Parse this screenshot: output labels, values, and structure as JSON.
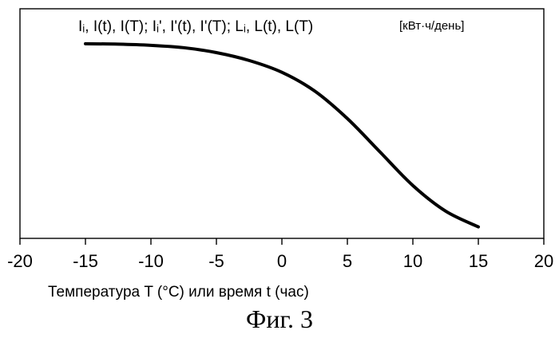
{
  "chart_data": {
    "type": "line",
    "title": "",
    "ylabel": "Iᵢ, I(t), I(T); Iᵢ', I'(t), I'(T); Lᵢ, L(t), L(T)",
    "ylabel_units": "[кВт·ч/день]",
    "xlabel": "Температура T (°C) или время t (час)",
    "xlim": [
      -20,
      20
    ],
    "xticks": [
      -20,
      -15,
      -10,
      -5,
      0,
      5,
      10,
      15,
      20
    ],
    "xtick_labels": [
      "-20",
      "-15",
      "-10",
      "-5",
      "0",
      "5",
      "10",
      "15",
      "20"
    ],
    "ylim": [
      0,
      1
    ],
    "y_ticks_shown": false,
    "grid": false,
    "series": [
      {
        "x": [
          -15,
          -12.5,
          -10,
          -7.5,
          -5,
          -2.5,
          0,
          2.5,
          5,
          7.5,
          10,
          12.5,
          15
        ],
        "y": [
          0.96,
          0.958,
          0.952,
          0.94,
          0.915,
          0.875,
          0.815,
          0.72,
          0.58,
          0.41,
          0.24,
          0.11,
          0.03
        ]
      }
    ]
  },
  "caption": "Фиг. 3"
}
